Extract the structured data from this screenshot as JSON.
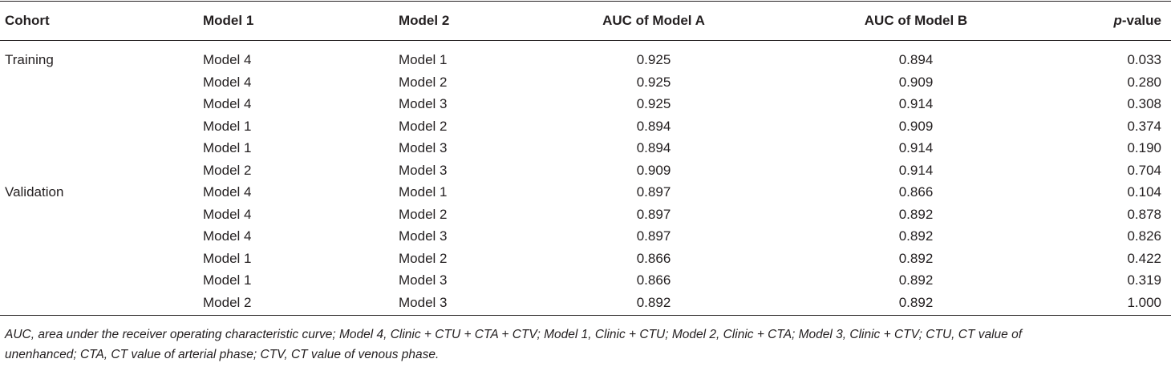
{
  "table": {
    "headers": [
      "Cohort",
      "Model 1",
      "Model 2",
      "AUC of Model A",
      "AUC of Model B",
      {
        "italic": "p",
        "rest": "-value"
      }
    ],
    "groups": [
      {
        "cohort": "Training",
        "rows": [
          [
            "Model 4",
            "Model 1",
            "0.925",
            "0.894",
            "0.033"
          ],
          [
            "Model 4",
            "Model 2",
            "0.925",
            "0.909",
            "0.280"
          ],
          [
            "Model 4",
            "Model 3",
            "0.925",
            "0.914",
            "0.308"
          ],
          [
            "Model 1",
            "Model 2",
            "0.894",
            "0.909",
            "0.374"
          ],
          [
            "Model 1",
            "Model 3",
            "0.894",
            "0.914",
            "0.190"
          ],
          [
            "Model 2",
            "Model 3",
            "0.909",
            "0.914",
            "0.704"
          ]
        ]
      },
      {
        "cohort": "Validation",
        "rows": [
          [
            "Model 4",
            "Model 1",
            "0.897",
            "0.866",
            "0.104"
          ],
          [
            "Model 4",
            "Model 2",
            "0.897",
            "0.892",
            "0.878"
          ],
          [
            "Model 4",
            "Model 3",
            "0.897",
            "0.892",
            "0.826"
          ],
          [
            "Model 1",
            "Model 2",
            "0.866",
            "0.892",
            "0.422"
          ],
          [
            "Model 1",
            "Model 3",
            "0.866",
            "0.892",
            "0.319"
          ],
          [
            "Model 2",
            "Model 3",
            "0.892",
            "0.892",
            "1.000"
          ]
        ]
      }
    ],
    "footnote": [
      "AUC, area under the receiver operating characteristic curve; Model 4, Clinic + CTU + CTA + CTV; Model 1, Clinic + CTU; Model 2, Clinic + CTA; Model 3, Clinic + CTV; CTU, CT value of",
      "unenhanced; CTA, CT value of arterial phase; CTV, CT value of venous phase."
    ]
  }
}
